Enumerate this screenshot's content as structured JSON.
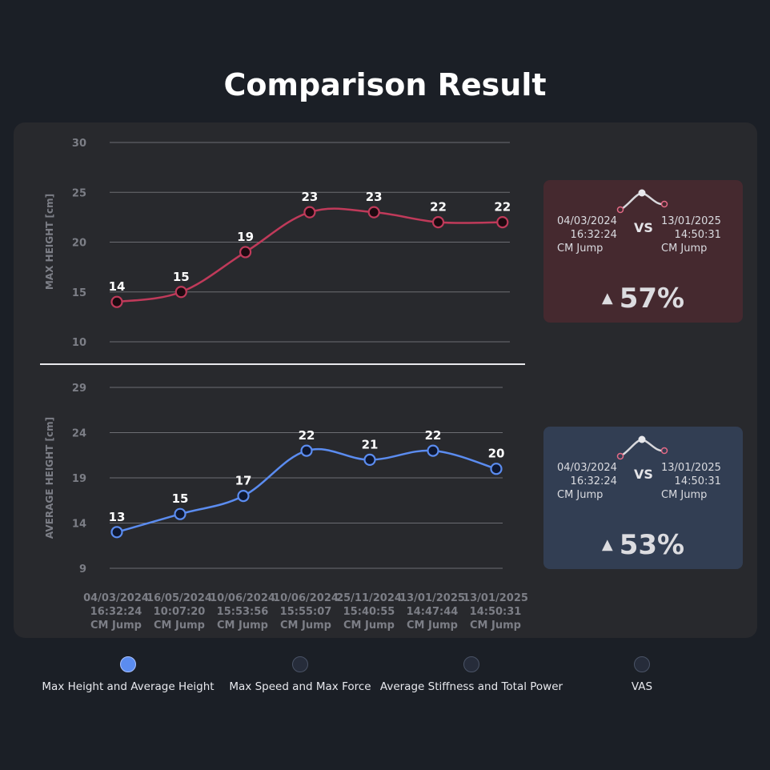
{
  "title": "Comparison Result",
  "chart_data": [
    {
      "type": "line",
      "ylabel": "MAX HEIGHT [cm]",
      "ylim": [
        10,
        30
      ],
      "yticks": [
        10,
        15,
        20,
        25,
        30
      ],
      "categories": [
        "04/03/2024 16:32:24 CM Jump",
        "16/05/2024 10:07:20 CM Jump",
        "10/06/2024 15:53:56 CM Jump",
        "10/06/2024 15:55:07 CM Jump",
        "25/11/2024 15:40:55 CM Jump",
        "13/01/2025 14:47:44 CM Jump",
        "13/01/2025 14:50:31 CM Jump"
      ],
      "values": [
        14,
        15,
        19,
        23,
        23,
        22,
        22
      ],
      "color": "#c03a5a",
      "grid": true
    },
    {
      "type": "line",
      "ylabel": "AVERAGE HEIGHT [cm]",
      "ylim": [
        9,
        29
      ],
      "yticks": [
        9,
        14,
        19,
        24,
        29
      ],
      "categories": [
        "04/03/2024 16:32:24 CM Jump",
        "16/05/2024 10:07:20 CM Jump",
        "10/06/2024 15:53:56 CM Jump",
        "10/06/2024 15:55:07 CM Jump",
        "25/11/2024 15:40:55 CM Jump",
        "13/01/2025 14:47:44 CM Jump",
        "13/01/2025 14:50:31 CM Jump"
      ],
      "values": [
        13,
        15,
        17,
        22,
        21,
        22,
        20
      ],
      "color": "#5b8cf0",
      "grid": true
    }
  ],
  "x_labels": [
    {
      "date": "04/03/2024",
      "time": "16:32:24",
      "type": "CM Jump"
    },
    {
      "date": "16/05/2024",
      "time": "10:07:20",
      "type": "CM Jump"
    },
    {
      "date": "10/06/2024",
      "time": "15:53:56",
      "type": "CM Jump"
    },
    {
      "date": "10/06/2024",
      "time": "15:55:07",
      "type": "CM Jump"
    },
    {
      "date": "25/11/2024",
      "time": "15:40:55",
      "type": "CM Jump"
    },
    {
      "date": "13/01/2025",
      "time": "14:47:44",
      "type": "CM Jump"
    },
    {
      "date": "13/01/2025",
      "time": "14:50:31",
      "type": "CM Jump"
    }
  ],
  "cards": {
    "max": {
      "from": {
        "date": "04/03/2024",
        "time": "16:32:24",
        "type": "CM Jump"
      },
      "vs": "VS",
      "to": {
        "date": "13/01/2025",
        "time": "14:50:31",
        "type": "CM Jump"
      },
      "percent": "57%",
      "color": "#45292f"
    },
    "avg": {
      "from": {
        "date": "04/03/2024",
        "time": "16:32:24",
        "type": "CM Jump"
      },
      "vs": "VS",
      "to": {
        "date": "13/01/2025",
        "time": "14:50:31",
        "type": "CM Jump"
      },
      "percent": "53%",
      "color": "#323e53"
    }
  },
  "tabs": [
    {
      "label": "Max Height and Average Height",
      "active": true
    },
    {
      "label": "Max Speed and Max Force",
      "active": false
    },
    {
      "label": "Average Stiffness and Total Power",
      "active": false
    },
    {
      "label": "VAS",
      "active": false
    }
  ]
}
